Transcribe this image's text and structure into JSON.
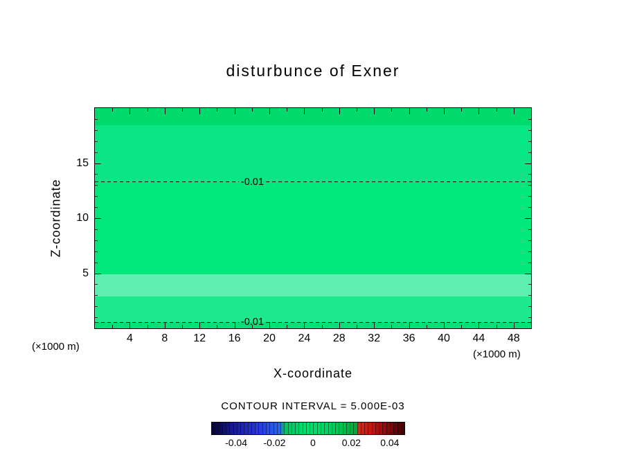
{
  "title": "disturbunce of Exner",
  "chart_data": {
    "type": "heatmap",
    "title": "disturbunce of Exner",
    "xlabel": "X-coordinate",
    "ylabel": "Z-coordinate",
    "x_units": "(×1000 m)",
    "y_units": "(×1000 m)",
    "xlim": [
      0,
      50
    ],
    "ylim": [
      0,
      20
    ],
    "x_major_ticks": [
      4,
      8,
      12,
      16,
      20,
      24,
      28,
      32,
      36,
      40,
      44,
      48
    ],
    "x_minor_step": 2,
    "y_major_ticks": [
      5,
      10,
      15
    ],
    "y_minor_step": 1,
    "grid": false,
    "legend": "none",
    "contour_interval": 0.005,
    "contour_interval_label": "CONTOUR INTERVAL = 5.000E-03",
    "contours": [
      {
        "label": "-0.01",
        "value": -0.01,
        "z": 13.3,
        "label_frac": 0.33
      },
      {
        "label": "-0.01",
        "value": -0.01,
        "z": 0.55,
        "label_frac": 0.33
      }
    ],
    "field_bands": [
      {
        "z0": 18.4,
        "z1": 20.0,
        "value": -0.013,
        "color": "#00d96b"
      },
      {
        "z0": 13.3,
        "z1": 18.4,
        "value": -0.011,
        "color": "#0be583"
      },
      {
        "z0": 4.9,
        "z1": 13.3,
        "value": -0.008,
        "color": "#00e77b"
      },
      {
        "z0": 2.9,
        "z1": 4.9,
        "value": -0.006,
        "color": "#5fefb1"
      },
      {
        "z0": 0.55,
        "z1": 2.9,
        "value": -0.008,
        "color": "#1fe98d"
      },
      {
        "z0": 0.0,
        "z1": 0.55,
        "value": -0.01,
        "color": "#00e077"
      }
    ],
    "colorbar": {
      "min": -0.053,
      "max": 0.048,
      "segments": 53,
      "tick_labels": [
        {
          "value": -0.04,
          "label": "-0.04"
        },
        {
          "value": -0.02,
          "label": "-0.02"
        },
        {
          "value": 0,
          "label": "0"
        },
        {
          "value": 0.02,
          "label": "0.02"
        },
        {
          "value": 0.04,
          "label": "0.04"
        }
      ],
      "stops": [
        {
          "pos": 0.0,
          "color": "#050530"
        },
        {
          "pos": 0.12,
          "color": "#1a1aa0"
        },
        {
          "pos": 0.25,
          "color": "#2a3ae0"
        },
        {
          "pos": 0.36,
          "color": "#2a6ae8"
        },
        {
          "pos": 0.375,
          "color": "#00c060"
        },
        {
          "pos": 0.5,
          "color": "#00e070"
        },
        {
          "pos": 0.62,
          "color": "#00d060"
        },
        {
          "pos": 0.75,
          "color": "#00a838"
        },
        {
          "pos": 0.765,
          "color": "#d02818"
        },
        {
          "pos": 0.85,
          "color": "#b81010"
        },
        {
          "pos": 1.0,
          "color": "#400000"
        }
      ]
    }
  }
}
